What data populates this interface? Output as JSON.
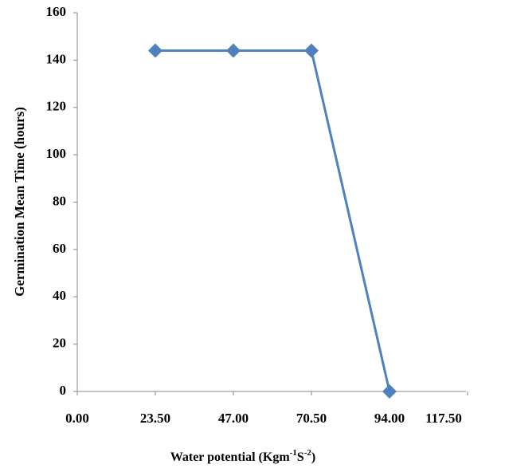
{
  "chart_data": {
    "type": "line",
    "x_label": {
      "text": "Water potential (Kgm",
      "sup1": "-1",
      "mid": "S",
      "sup2": "-2",
      "end": ")"
    },
    "y_label": "Germination Mean Time (hours)",
    "x": [
      23.5,
      47,
      70.5,
      94
    ],
    "series": [
      {
        "color": "#4f81bd",
        "values": [
          144,
          144,
          144,
          0
        ]
      }
    ],
    "xlim": [
      0,
      117.5
    ],
    "xticks": [
      {
        "value": 0,
        "label": "0.00"
      },
      {
        "value": 23.5,
        "label": "23.50"
      },
      {
        "value": 47,
        "label": "47.00"
      },
      {
        "value": 70.5,
        "label": "70.50"
      },
      {
        "value": 94,
        "label": "94.00"
      },
      {
        "value": 117.5,
        "label": "117.50"
      }
    ],
    "ylim": [
      0,
      160
    ],
    "yticks": [
      0,
      20,
      40,
      60,
      80,
      100,
      120,
      140,
      160
    ],
    "grid": false
  }
}
